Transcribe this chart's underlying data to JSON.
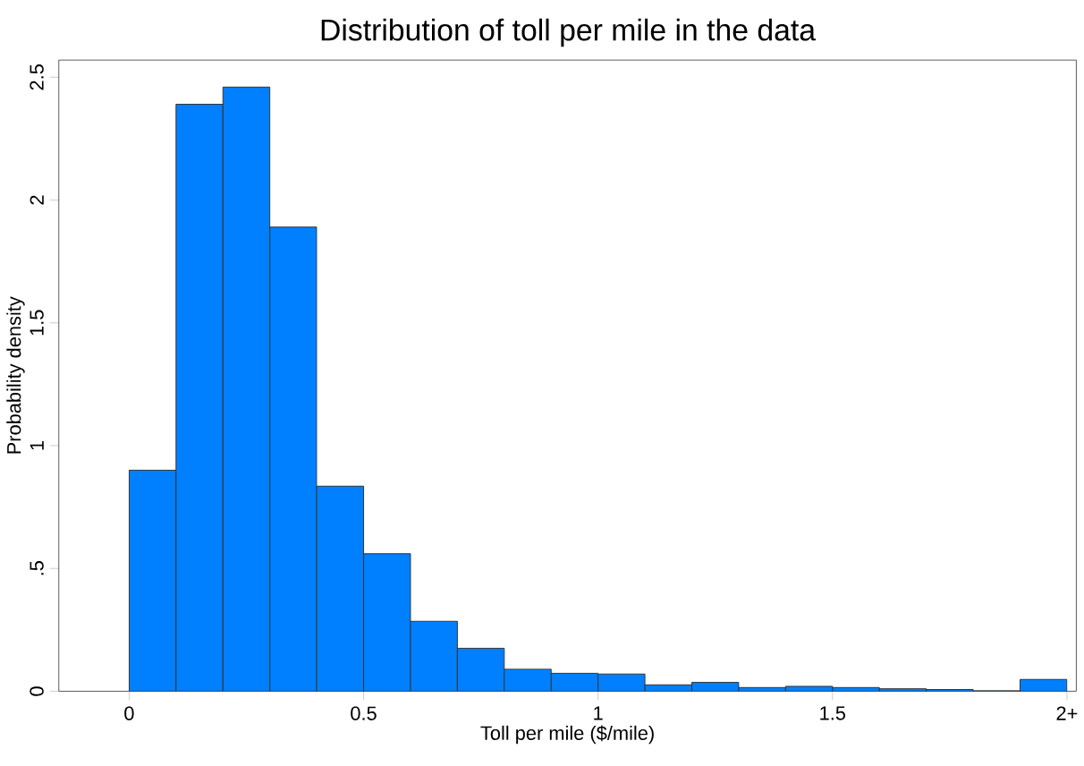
{
  "chart_data": {
    "type": "histogram",
    "title": "Distribution of toll per mile in the data",
    "xlabel": "Toll per mile ($/mile)",
    "ylabel": "Probability density",
    "bins": [
      0,
      0.1,
      0.2,
      0.3,
      0.4,
      0.5,
      0.6,
      0.7,
      0.8,
      0.9,
      1.0,
      1.1,
      1.2,
      1.3,
      1.4,
      1.5,
      1.6,
      1.7,
      1.8,
      1.9,
      2.0
    ],
    "values": [
      0.9,
      2.39,
      2.46,
      1.89,
      0.835,
      0.56,
      0.285,
      0.175,
      0.09,
      0.073,
      0.07,
      0.026,
      0.036,
      0.015,
      0.02,
      0.015,
      0.01,
      0.007,
      0.002,
      0.048
    ],
    "color": "#0080ff",
    "xlim": [
      -0.15,
      2.02
    ],
    "ylim": [
      0,
      2.57
    ],
    "xticks": [
      0,
      0.5,
      1,
      1.5,
      {
        "value": 2,
        "label": "2+"
      }
    ],
    "yticks": [
      0,
      {
        "value": 0.5,
        "label": ".5"
      },
      1,
      1.5,
      2,
      2.5
    ],
    "grid": false
  }
}
